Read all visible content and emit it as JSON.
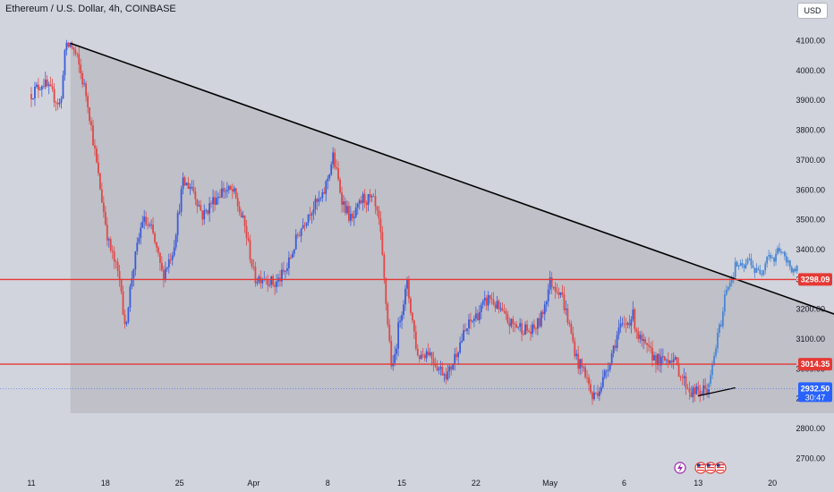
{
  "header": {
    "title": "Ethereum / U.S. Dollar, 4h, COINBASE",
    "currency_button": "USD"
  },
  "badges": {
    "price_upper": "3298.09",
    "price_lower": "3014.35",
    "current_price": "2932.50",
    "countdown": "30:47"
  },
  "colors": {
    "background": "#d1d4dc",
    "axis_panel": "#d1d4dc",
    "triangle_fill": "#b8bac1",
    "bull": "#3a5bd9",
    "bear": "#e04848",
    "projection": "#4a86d4",
    "hline": "#e53935",
    "trendline": "#000000",
    "badge_red": "#e53935",
    "badge_blue": "#2962ff"
  },
  "chart_data": {
    "type": "candlestick",
    "title": "Ethereum / U.S. Dollar, 4h, COINBASE",
    "xlabel": "",
    "ylabel": "",
    "ylim": [
      2600,
      4200
    ],
    "y_ticks": [
      2700,
      2800,
      2900,
      3000,
      3100,
      3200,
      3300,
      3400,
      3500,
      3600,
      3700,
      3800,
      3900,
      4000,
      4100
    ],
    "x_tick_labels": [
      "11",
      "18",
      "25",
      "Apr",
      "8",
      "15",
      "22",
      "May",
      "6",
      "13",
      "20"
    ],
    "x_ticks": [
      0,
      7,
      14,
      21,
      28,
      35,
      42,
      49,
      56,
      63,
      70
    ],
    "x_unit": "days since Mar 11",
    "price_series": [
      [
        0,
        3920
      ],
      [
        1.1,
        3960
      ],
      [
        2.8,
        3880
      ],
      [
        3.1,
        4060
      ],
      [
        3.7,
        4090
      ],
      [
        4.3,
        4040
      ],
      [
        5.3,
        3900
      ],
      [
        6.3,
        3650
      ],
      [
        7.3,
        3420
      ],
      [
        8.5,
        3280
      ],
      [
        8.8,
        3120
      ],
      [
        9.5,
        3310
      ],
      [
        10.5,
        3500
      ],
      [
        11.4,
        3460
      ],
      [
        12.4,
        3310
      ],
      [
        13.4,
        3400
      ],
      [
        14.3,
        3620
      ],
      [
        15.2,
        3610
      ],
      [
        16.2,
        3510
      ],
      [
        17.1,
        3560
      ],
      [
        18.1,
        3600
      ],
      [
        19.1,
        3590
      ],
      [
        20.2,
        3470
      ],
      [
        21.1,
        3300
      ],
      [
        22.0,
        3310
      ],
      [
        23.0,
        3280
      ],
      [
        24.1,
        3330
      ],
      [
        25.2,
        3450
      ],
      [
        26.3,
        3530
      ],
      [
        27.5,
        3570
      ],
      [
        28.5,
        3710
      ],
      [
        29.4,
        3560
      ],
      [
        30.3,
        3490
      ],
      [
        31.3,
        3570
      ],
      [
        32.3,
        3560
      ],
      [
        32.9,
        3480
      ],
      [
        33.5,
        3220
      ],
      [
        34.1,
        2980
      ],
      [
        34.8,
        3170
      ],
      [
        35.5,
        3280
      ],
      [
        36.5,
        3040
      ],
      [
        37.5,
        3060
      ],
      [
        38.5,
        3000
      ],
      [
        39.4,
        2980
      ],
      [
        40.4,
        3080
      ],
      [
        41.4,
        3150
      ],
      [
        42.1,
        3180
      ],
      [
        43.3,
        3240
      ],
      [
        44.3,
        3190
      ],
      [
        45.2,
        3150
      ],
      [
        46.2,
        3140
      ],
      [
        47.2,
        3120
      ],
      [
        48.1,
        3160
      ],
      [
        49.0,
        3290
      ],
      [
        50.0,
        3260
      ],
      [
        50.7,
        3160
      ],
      [
        51.6,
        3020
      ],
      [
        52.3,
        2990
      ],
      [
        53.0,
        2900
      ],
      [
        53.9,
        2950
      ],
      [
        54.9,
        3060
      ],
      [
        55.5,
        3130
      ],
      [
        56.0,
        3140
      ],
      [
        56.8,
        3180
      ],
      [
        57.4,
        3100
      ],
      [
        58.2,
        3060
      ],
      [
        59.4,
        3020
      ],
      [
        60.5,
        3040
      ],
      [
        61.5,
        2970
      ],
      [
        62.3,
        2920
      ],
      [
        63.2,
        2920
      ],
      [
        64.0,
        2935
      ]
    ],
    "projection_series": [
      [
        64.0,
        2935
      ],
      [
        64.4,
        3020
      ],
      [
        64.8,
        3100
      ],
      [
        65.3,
        3180
      ],
      [
        65.6,
        3270
      ],
      [
        66.1,
        3300
      ],
      [
        66.6,
        3350
      ],
      [
        67.2,
        3330
      ],
      [
        67.9,
        3370
      ],
      [
        68.4,
        3320
      ],
      [
        69.0,
        3330
      ],
      [
        69.6,
        3390
      ],
      [
        70.2,
        3360
      ],
      [
        70.6,
        3410
      ],
      [
        71.2,
        3360
      ],
      [
        71.8,
        3340
      ],
      [
        72.5,
        3320
      ]
    ],
    "horizontal_levels": [
      3298.09,
      3014.35
    ],
    "current_price": 2932.5,
    "current_price_line": 2932.5,
    "trendlines": [
      {
        "from": [
          3.7,
          4090
        ],
        "to": [
          80,
          3130
        ]
      },
      {
        "from": [
          63.0,
          2908
        ],
        "to": [
          66.5,
          2935
        ]
      }
    ],
    "triangle_zone": {
      "x_start": 3.7,
      "x_end": 80,
      "top_from": 4090,
      "top_to": 3130,
      "bottom": 2850
    },
    "grid": false
  }
}
